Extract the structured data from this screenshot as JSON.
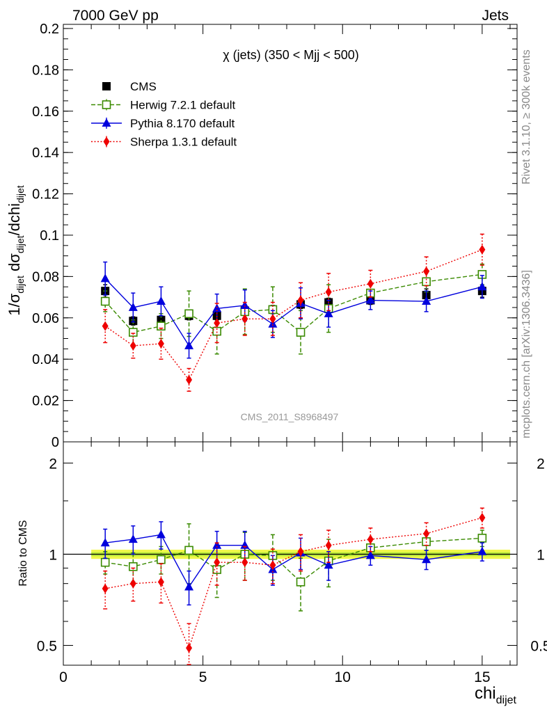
{
  "header": {
    "left_label": "7000 GeV pp",
    "right_label": "Jets"
  },
  "side_labels": {
    "rivet": "Rivet 3.1.10, ≥ 300k events",
    "mcplots": "mcplots.cern.ch [arXiv:1306.3436]"
  },
  "chart_data": [
    {
      "panel": "main",
      "type": "scatter",
      "title": "χ (jets) (350 < Mjj <  500)",
      "watermark": "CMS_2011_S8968497",
      "ylabel": "1/σ_dijet dσ_dijet/dchi_dijet",
      "xlabel": "chi_dijet",
      "xlim": [
        0,
        16.25
      ],
      "ylim": [
        0,
        0.202
      ],
      "y_ticks": [
        "0",
        "0.02",
        "0.04",
        "0.06",
        "0.08",
        "0.1",
        "0.12",
        "0.14",
        "0.16",
        "0.18",
        "0.2"
      ],
      "legend_position": "top-left",
      "series": [
        {
          "name": "CMS",
          "style": "data",
          "color": "#000000",
          "marker": "square",
          "x": [
            1.5,
            2.5,
            3.5,
            4.5,
            5.5,
            6.5,
            7.5,
            8.5,
            9.5,
            11,
            13,
            15
          ],
          "y": [
            0.073,
            0.0585,
            0.059,
            0.061,
            0.061,
            0.0635,
            0.064,
            0.0665,
            0.0675,
            0.0685,
            0.071,
            0.073
          ],
          "err": [
            0.003,
            0.002,
            0.002,
            0.002,
            0.002,
            0.002,
            0.002,
            0.002,
            0.002,
            0.002,
            0.003,
            0.003
          ]
        },
        {
          "name": "Herwig 7.2.1 default",
          "style": "dashed",
          "color": "#3a8a00",
          "marker": "open-square",
          "x": [
            1.5,
            2.5,
            3.5,
            4.5,
            5.5,
            6.5,
            7.5,
            8.5,
            9.5,
            11,
            13,
            15
          ],
          "y": [
            0.068,
            0.053,
            0.056,
            0.062,
            0.0535,
            0.063,
            0.064,
            0.053,
            0.0645,
            0.072,
            0.0775,
            0.081
          ],
          "err": [
            0.005,
            0.006,
            0.006,
            0.011,
            0.011,
            0.011,
            0.011,
            0.0105,
            0.0115,
            0.0045,
            0.005,
            0.005
          ]
        },
        {
          "name": "Pythia 8.170 default",
          "style": "solid",
          "color": "#0000dd",
          "marker": "triangle",
          "x": [
            1.5,
            2.5,
            3.5,
            4.5,
            5.5,
            6.5,
            7.5,
            8.5,
            9.5,
            11,
            13,
            15
          ],
          "y": [
            0.079,
            0.065,
            0.068,
            0.0465,
            0.0645,
            0.066,
            0.057,
            0.067,
            0.062,
            0.0685,
            0.068,
            0.075
          ],
          "err": [
            0.008,
            0.007,
            0.007,
            0.006,
            0.007,
            0.0075,
            0.0065,
            0.0075,
            0.0065,
            0.0045,
            0.005,
            0.0055
          ]
        },
        {
          "name": "Sherpa 1.3.1 default",
          "style": "dotted",
          "color": "#ee0000",
          "marker": "diamond",
          "x": [
            1.5,
            2.5,
            3.5,
            4.5,
            5.5,
            6.5,
            7.5,
            8.5,
            9.5,
            11,
            13,
            15
          ],
          "y": [
            0.056,
            0.0465,
            0.0475,
            0.03,
            0.0575,
            0.0595,
            0.0595,
            0.0685,
            0.0725,
            0.0765,
            0.0825,
            0.093
          ],
          "err": [
            0.008,
            0.006,
            0.0075,
            0.0055,
            0.0095,
            0.008,
            0.008,
            0.0085,
            0.009,
            0.0065,
            0.007,
            0.0075
          ]
        }
      ]
    },
    {
      "panel": "ratio",
      "type": "scatter",
      "ylabel": "Ratio to CMS",
      "xlabel": "chi_dijet",
      "x_ticks": [
        "0",
        "5",
        "10",
        "15"
      ],
      "y_ticks": [
        "0.5",
        "1",
        "2"
      ],
      "xlim": [
        0,
        16.25
      ],
      "ylim": [
        0.43,
        2.35
      ],
      "y_scale": "log",
      "band_color": "#f0f84a",
      "band_inner_color": "#b8ea3a",
      "series": [
        {
          "name": "Herwig 7.2.1 default",
          "color": "#3a8a00",
          "style": "dashed",
          "marker": "open-square",
          "x": [
            1.5,
            2.5,
            3.5,
            4.5,
            5.5,
            6.5,
            7.5,
            8.5,
            9.5,
            11,
            13,
            15
          ],
          "y": [
            0.94,
            0.91,
            0.96,
            1.03,
            0.89,
            1.0,
            0.99,
            0.81,
            0.95,
            1.05,
            1.1,
            1.13
          ],
          "err": [
            0.08,
            0.1,
            0.1,
            0.23,
            0.17,
            0.18,
            0.17,
            0.16,
            0.17,
            0.07,
            0.07,
            0.07
          ]
        },
        {
          "name": "Pythia 8.170 default",
          "color": "#0000dd",
          "style": "solid",
          "marker": "triangle",
          "x": [
            1.5,
            2.5,
            3.5,
            4.5,
            5.5,
            6.5,
            7.5,
            8.5,
            9.5,
            11,
            13,
            15
          ],
          "y": [
            1.09,
            1.12,
            1.16,
            0.78,
            1.07,
            1.07,
            0.89,
            1.01,
            0.92,
            0.99,
            0.96,
            1.02
          ],
          "err": [
            0.12,
            0.12,
            0.12,
            0.1,
            0.12,
            0.12,
            0.1,
            0.12,
            0.1,
            0.07,
            0.07,
            0.07
          ]
        },
        {
          "name": "Sherpa 1.3.1 default",
          "color": "#ee0000",
          "style": "dotted",
          "marker": "diamond",
          "x": [
            1.5,
            2.5,
            3.5,
            4.5,
            5.5,
            6.5,
            7.5,
            8.5,
            9.5,
            11,
            13,
            15
          ],
          "y": [
            0.77,
            0.8,
            0.81,
            0.49,
            0.94,
            0.94,
            0.92,
            1.02,
            1.07,
            1.12,
            1.17,
            1.32
          ],
          "err": [
            0.11,
            0.1,
            0.12,
            0.1,
            0.15,
            0.12,
            0.12,
            0.14,
            0.13,
            0.1,
            0.1,
            0.1
          ]
        }
      ]
    }
  ]
}
